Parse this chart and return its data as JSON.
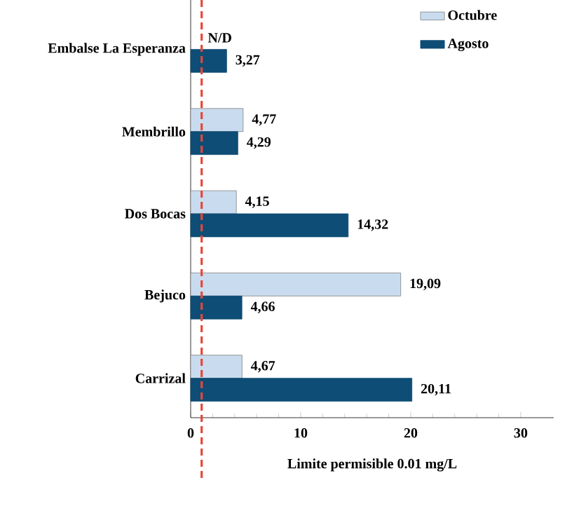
{
  "chart_data": {
    "type": "bar",
    "orientation": "horizontal",
    "categories": [
      "Embalse La Esperanza",
      "Membrillo",
      "Dos Bocas",
      "Bejuco",
      "Carrizal"
    ],
    "series": [
      {
        "name": "Octubre",
        "color": "#c9dcef",
        "values": [
          null,
          4.77,
          4.15,
          19.09,
          4.67
        ],
        "value_labels": [
          "N/D",
          "4,77",
          "4,15",
          "19,09",
          "4,67"
        ]
      },
      {
        "name": "Agosto",
        "color": "#0e4d75",
        "values": [
          3.27,
          4.29,
          14.32,
          4.66,
          20.11
        ],
        "value_labels": [
          "3,27",
          "4,29",
          "14,32",
          "4,66",
          "20,11"
        ]
      }
    ],
    "xlim": [
      0,
      33
    ],
    "xticks": [
      0,
      10,
      20,
      30
    ],
    "xlabel": "Limite permisible 0.01 mg/L",
    "ref_lines": [
      {
        "axis": "x",
        "value": 1,
        "color": "#e8463a",
        "line_style": "dashed"
      }
    ],
    "legend": "top right"
  }
}
